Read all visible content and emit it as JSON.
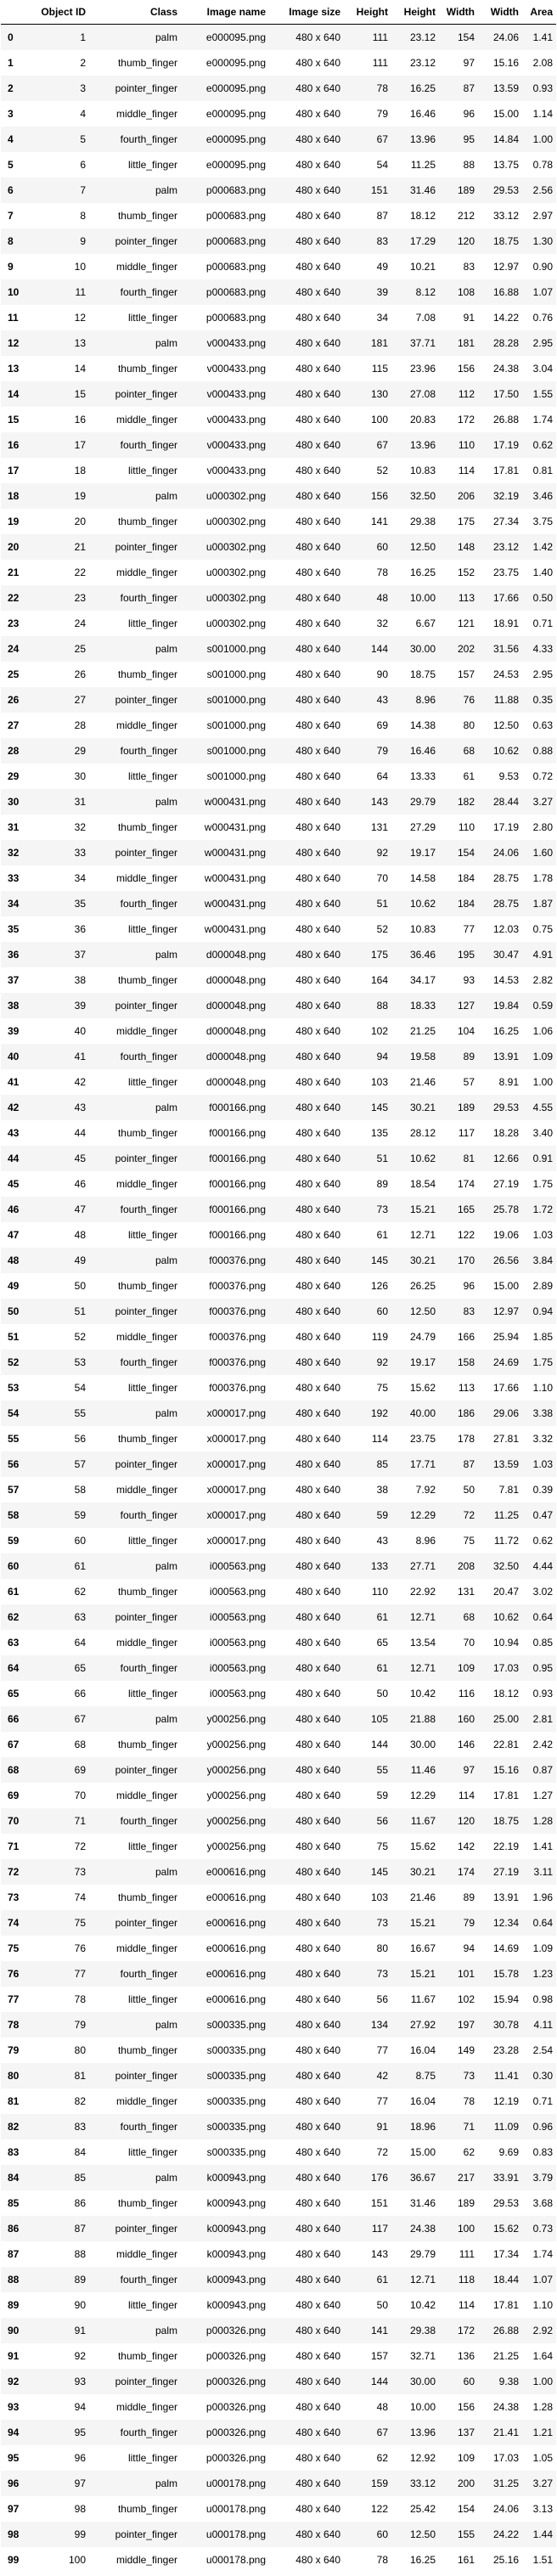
{
  "table": {
    "columns": [
      "",
      "Object ID",
      "Class",
      "Image name",
      "Image size",
      "Height",
      "Height",
      "Width",
      "Width",
      "Area"
    ],
    "rows": [
      [
        "0",
        "1",
        "palm",
        "e000095.png",
        "480 x 640",
        "111",
        "23.12",
        "154",
        "24.06",
        "1.41"
      ],
      [
        "1",
        "2",
        "thumb_finger",
        "e000095.png",
        "480 x 640",
        "111",
        "23.12",
        "97",
        "15.16",
        "2.08"
      ],
      [
        "2",
        "3",
        "pointer_finger",
        "e000095.png",
        "480 x 640",
        "78",
        "16.25",
        "87",
        "13.59",
        "0.93"
      ],
      [
        "3",
        "4",
        "middle_finger",
        "e000095.png",
        "480 x 640",
        "79",
        "16.46",
        "96",
        "15.00",
        "1.14"
      ],
      [
        "4",
        "5",
        "fourth_finger",
        "e000095.png",
        "480 x 640",
        "67",
        "13.96",
        "95",
        "14.84",
        "1.00"
      ],
      [
        "5",
        "6",
        "little_finger",
        "e000095.png",
        "480 x 640",
        "54",
        "11.25",
        "88",
        "13.75",
        "0.78"
      ],
      [
        "6",
        "7",
        "palm",
        "p000683.png",
        "480 x 640",
        "151",
        "31.46",
        "189",
        "29.53",
        "2.56"
      ],
      [
        "7",
        "8",
        "thumb_finger",
        "p000683.png",
        "480 x 640",
        "87",
        "18.12",
        "212",
        "33.12",
        "2.97"
      ],
      [
        "8",
        "9",
        "pointer_finger",
        "p000683.png",
        "480 x 640",
        "83",
        "17.29",
        "120",
        "18.75",
        "1.30"
      ],
      [
        "9",
        "10",
        "middle_finger",
        "p000683.png",
        "480 x 640",
        "49",
        "10.21",
        "83",
        "12.97",
        "0.90"
      ],
      [
        "10",
        "11",
        "fourth_finger",
        "p000683.png",
        "480 x 640",
        "39",
        "8.12",
        "108",
        "16.88",
        "1.07"
      ],
      [
        "11",
        "12",
        "little_finger",
        "p000683.png",
        "480 x 640",
        "34",
        "7.08",
        "91",
        "14.22",
        "0.76"
      ],
      [
        "12",
        "13",
        "palm",
        "v000433.png",
        "480 x 640",
        "181",
        "37.71",
        "181",
        "28.28",
        "2.95"
      ],
      [
        "13",
        "14",
        "thumb_finger",
        "v000433.png",
        "480 x 640",
        "115",
        "23.96",
        "156",
        "24.38",
        "3.04"
      ],
      [
        "14",
        "15",
        "pointer_finger",
        "v000433.png",
        "480 x 640",
        "130",
        "27.08",
        "112",
        "17.50",
        "1.55"
      ],
      [
        "15",
        "16",
        "middle_finger",
        "v000433.png",
        "480 x 640",
        "100",
        "20.83",
        "172",
        "26.88",
        "1.74"
      ],
      [
        "16",
        "17",
        "fourth_finger",
        "v000433.png",
        "480 x 640",
        "67",
        "13.96",
        "110",
        "17.19",
        "0.62"
      ],
      [
        "17",
        "18",
        "little_finger",
        "v000433.png",
        "480 x 640",
        "52",
        "10.83",
        "114",
        "17.81",
        "0.81"
      ],
      [
        "18",
        "19",
        "palm",
        "u000302.png",
        "480 x 640",
        "156",
        "32.50",
        "206",
        "32.19",
        "3.46"
      ],
      [
        "19",
        "20",
        "thumb_finger",
        "u000302.png",
        "480 x 640",
        "141",
        "29.38",
        "175",
        "27.34",
        "3.75"
      ],
      [
        "20",
        "21",
        "pointer_finger",
        "u000302.png",
        "480 x 640",
        "60",
        "12.50",
        "148",
        "23.12",
        "1.42"
      ],
      [
        "21",
        "22",
        "middle_finger",
        "u000302.png",
        "480 x 640",
        "78",
        "16.25",
        "152",
        "23.75",
        "1.40"
      ],
      [
        "22",
        "23",
        "fourth_finger",
        "u000302.png",
        "480 x 640",
        "48",
        "10.00",
        "113",
        "17.66",
        "0.50"
      ],
      [
        "23",
        "24",
        "little_finger",
        "u000302.png",
        "480 x 640",
        "32",
        "6.67",
        "121",
        "18.91",
        "0.71"
      ],
      [
        "24",
        "25",
        "palm",
        "s001000.png",
        "480 x 640",
        "144",
        "30.00",
        "202",
        "31.56",
        "4.33"
      ],
      [
        "25",
        "26",
        "thumb_finger",
        "s001000.png",
        "480 x 640",
        "90",
        "18.75",
        "157",
        "24.53",
        "2.95"
      ],
      [
        "26",
        "27",
        "pointer_finger",
        "s001000.png",
        "480 x 640",
        "43",
        "8.96",
        "76",
        "11.88",
        "0.35"
      ],
      [
        "27",
        "28",
        "middle_finger",
        "s001000.png",
        "480 x 640",
        "69",
        "14.38",
        "80",
        "12.50",
        "0.63"
      ],
      [
        "28",
        "29",
        "fourth_finger",
        "s001000.png",
        "480 x 640",
        "79",
        "16.46",
        "68",
        "10.62",
        "0.88"
      ],
      [
        "29",
        "30",
        "little_finger",
        "s001000.png",
        "480 x 640",
        "64",
        "13.33",
        "61",
        "9.53",
        "0.72"
      ],
      [
        "30",
        "31",
        "palm",
        "w000431.png",
        "480 x 640",
        "143",
        "29.79",
        "182",
        "28.44",
        "3.27"
      ],
      [
        "31",
        "32",
        "thumb_finger",
        "w000431.png",
        "480 x 640",
        "131",
        "27.29",
        "110",
        "17.19",
        "2.80"
      ],
      [
        "32",
        "33",
        "pointer_finger",
        "w000431.png",
        "480 x 640",
        "92",
        "19.17",
        "154",
        "24.06",
        "1.60"
      ],
      [
        "33",
        "34",
        "middle_finger",
        "w000431.png",
        "480 x 640",
        "70",
        "14.58",
        "184",
        "28.75",
        "1.78"
      ],
      [
        "34",
        "35",
        "fourth_finger",
        "w000431.png",
        "480 x 640",
        "51",
        "10.62",
        "184",
        "28.75",
        "1.87"
      ],
      [
        "35",
        "36",
        "little_finger",
        "w000431.png",
        "480 x 640",
        "52",
        "10.83",
        "77",
        "12.03",
        "0.75"
      ],
      [
        "36",
        "37",
        "palm",
        "d000048.png",
        "480 x 640",
        "175",
        "36.46",
        "195",
        "30.47",
        "4.91"
      ],
      [
        "37",
        "38",
        "thumb_finger",
        "d000048.png",
        "480 x 640",
        "164",
        "34.17",
        "93",
        "14.53",
        "2.82"
      ],
      [
        "38",
        "39",
        "pointer_finger",
        "d000048.png",
        "480 x 640",
        "88",
        "18.33",
        "127",
        "19.84",
        "0.59"
      ],
      [
        "39",
        "40",
        "middle_finger",
        "d000048.png",
        "480 x 640",
        "102",
        "21.25",
        "104",
        "16.25",
        "1.06"
      ],
      [
        "40",
        "41",
        "fourth_finger",
        "d000048.png",
        "480 x 640",
        "94",
        "19.58",
        "89",
        "13.91",
        "1.09"
      ],
      [
        "41",
        "42",
        "little_finger",
        "d000048.png",
        "480 x 640",
        "103",
        "21.46",
        "57",
        "8.91",
        "1.00"
      ],
      [
        "42",
        "43",
        "palm",
        "f000166.png",
        "480 x 640",
        "145",
        "30.21",
        "189",
        "29.53",
        "4.55"
      ],
      [
        "43",
        "44",
        "thumb_finger",
        "f000166.png",
        "480 x 640",
        "135",
        "28.12",
        "117",
        "18.28",
        "3.40"
      ],
      [
        "44",
        "45",
        "pointer_finger",
        "f000166.png",
        "480 x 640",
        "51",
        "10.62",
        "81",
        "12.66",
        "0.91"
      ],
      [
        "45",
        "46",
        "middle_finger",
        "f000166.png",
        "480 x 640",
        "89",
        "18.54",
        "174",
        "27.19",
        "1.75"
      ],
      [
        "46",
        "47",
        "fourth_finger",
        "f000166.png",
        "480 x 640",
        "73",
        "15.21",
        "165",
        "25.78",
        "1.72"
      ],
      [
        "47",
        "48",
        "little_finger",
        "f000166.png",
        "480 x 640",
        "61",
        "12.71",
        "122",
        "19.06",
        "1.03"
      ],
      [
        "48",
        "49",
        "palm",
        "f000376.png",
        "480 x 640",
        "145",
        "30.21",
        "170",
        "26.56",
        "3.84"
      ],
      [
        "49",
        "50",
        "thumb_finger",
        "f000376.png",
        "480 x 640",
        "126",
        "26.25",
        "96",
        "15.00",
        "2.89"
      ],
      [
        "50",
        "51",
        "pointer_finger",
        "f000376.png",
        "480 x 640",
        "60",
        "12.50",
        "83",
        "12.97",
        "0.94"
      ],
      [
        "51",
        "52",
        "middle_finger",
        "f000376.png",
        "480 x 640",
        "119",
        "24.79",
        "166",
        "25.94",
        "1.85"
      ],
      [
        "52",
        "53",
        "fourth_finger",
        "f000376.png",
        "480 x 640",
        "92",
        "19.17",
        "158",
        "24.69",
        "1.75"
      ],
      [
        "53",
        "54",
        "little_finger",
        "f000376.png",
        "480 x 640",
        "75",
        "15.62",
        "113",
        "17.66",
        "1.10"
      ],
      [
        "54",
        "55",
        "palm",
        "x000017.png",
        "480 x 640",
        "192",
        "40.00",
        "186",
        "29.06",
        "3.38"
      ],
      [
        "55",
        "56",
        "thumb_finger",
        "x000017.png",
        "480 x 640",
        "114",
        "23.75",
        "178",
        "27.81",
        "3.32"
      ],
      [
        "56",
        "57",
        "pointer_finger",
        "x000017.png",
        "480 x 640",
        "85",
        "17.71",
        "87",
        "13.59",
        "1.03"
      ],
      [
        "57",
        "58",
        "middle_finger",
        "x000017.png",
        "480 x 640",
        "38",
        "7.92",
        "50",
        "7.81",
        "0.39"
      ],
      [
        "58",
        "59",
        "fourth_finger",
        "x000017.png",
        "480 x 640",
        "59",
        "12.29",
        "72",
        "11.25",
        "0.47"
      ],
      [
        "59",
        "60",
        "little_finger",
        "x000017.png",
        "480 x 640",
        "43",
        "8.96",
        "75",
        "11.72",
        "0.62"
      ],
      [
        "60",
        "61",
        "palm",
        "i000563.png",
        "480 x 640",
        "133",
        "27.71",
        "208",
        "32.50",
        "4.44"
      ],
      [
        "61",
        "62",
        "thumb_finger",
        "i000563.png",
        "480 x 640",
        "110",
        "22.92",
        "131",
        "20.47",
        "3.02"
      ],
      [
        "62",
        "63",
        "pointer_finger",
        "i000563.png",
        "480 x 640",
        "61",
        "12.71",
        "68",
        "10.62",
        "0.64"
      ],
      [
        "63",
        "64",
        "middle_finger",
        "i000563.png",
        "480 x 640",
        "65",
        "13.54",
        "70",
        "10.94",
        "0.85"
      ],
      [
        "64",
        "65",
        "fourth_finger",
        "i000563.png",
        "480 x 640",
        "61",
        "12.71",
        "109",
        "17.03",
        "0.95"
      ],
      [
        "65",
        "66",
        "little_finger",
        "i000563.png",
        "480 x 640",
        "50",
        "10.42",
        "116",
        "18.12",
        "0.93"
      ],
      [
        "66",
        "67",
        "palm",
        "y000256.png",
        "480 x 640",
        "105",
        "21.88",
        "160",
        "25.00",
        "2.81"
      ],
      [
        "67",
        "68",
        "thumb_finger",
        "y000256.png",
        "480 x 640",
        "144",
        "30.00",
        "146",
        "22.81",
        "2.42"
      ],
      [
        "68",
        "69",
        "pointer_finger",
        "y000256.png",
        "480 x 640",
        "55",
        "11.46",
        "97",
        "15.16",
        "0.87"
      ],
      [
        "69",
        "70",
        "middle_finger",
        "y000256.png",
        "480 x 640",
        "59",
        "12.29",
        "114",
        "17.81",
        "1.27"
      ],
      [
        "70",
        "71",
        "fourth_finger",
        "y000256.png",
        "480 x 640",
        "56",
        "11.67",
        "120",
        "18.75",
        "1.28"
      ],
      [
        "71",
        "72",
        "little_finger",
        "y000256.png",
        "480 x 640",
        "75",
        "15.62",
        "142",
        "22.19",
        "1.41"
      ],
      [
        "72",
        "73",
        "palm",
        "e000616.png",
        "480 x 640",
        "145",
        "30.21",
        "174",
        "27.19",
        "3.11"
      ],
      [
        "73",
        "74",
        "thumb_finger",
        "e000616.png",
        "480 x 640",
        "103",
        "21.46",
        "89",
        "13.91",
        "1.96"
      ],
      [
        "74",
        "75",
        "pointer_finger",
        "e000616.png",
        "480 x 640",
        "73",
        "15.21",
        "79",
        "12.34",
        "0.64"
      ],
      [
        "75",
        "76",
        "middle_finger",
        "e000616.png",
        "480 x 640",
        "80",
        "16.67",
        "94",
        "14.69",
        "1.09"
      ],
      [
        "76",
        "77",
        "fourth_finger",
        "e000616.png",
        "480 x 640",
        "73",
        "15.21",
        "101",
        "15.78",
        "1.23"
      ],
      [
        "77",
        "78",
        "little_finger",
        "e000616.png",
        "480 x 640",
        "56",
        "11.67",
        "102",
        "15.94",
        "0.98"
      ],
      [
        "78",
        "79",
        "palm",
        "s000335.png",
        "480 x 640",
        "134",
        "27.92",
        "197",
        "30.78",
        "4.11"
      ],
      [
        "79",
        "80",
        "thumb_finger",
        "s000335.png",
        "480 x 640",
        "77",
        "16.04",
        "149",
        "23.28",
        "2.54"
      ],
      [
        "80",
        "81",
        "pointer_finger",
        "s000335.png",
        "480 x 640",
        "42",
        "8.75",
        "73",
        "11.41",
        "0.30"
      ],
      [
        "81",
        "82",
        "middle_finger",
        "s000335.png",
        "480 x 640",
        "77",
        "16.04",
        "78",
        "12.19",
        "0.71"
      ],
      [
        "82",
        "83",
        "fourth_finger",
        "s000335.png",
        "480 x 640",
        "91",
        "18.96",
        "71",
        "11.09",
        "0.96"
      ],
      [
        "83",
        "84",
        "little_finger",
        "s000335.png",
        "480 x 640",
        "72",
        "15.00",
        "62",
        "9.69",
        "0.83"
      ],
      [
        "84",
        "85",
        "palm",
        "k000943.png",
        "480 x 640",
        "176",
        "36.67",
        "217",
        "33.91",
        "3.79"
      ],
      [
        "85",
        "86",
        "thumb_finger",
        "k000943.png",
        "480 x 640",
        "151",
        "31.46",
        "189",
        "29.53",
        "3.68"
      ],
      [
        "86",
        "87",
        "pointer_finger",
        "k000943.png",
        "480 x 640",
        "117",
        "24.38",
        "100",
        "15.62",
        "0.73"
      ],
      [
        "87",
        "88",
        "middle_finger",
        "k000943.png",
        "480 x 640",
        "143",
        "29.79",
        "111",
        "17.34",
        "1.74"
      ],
      [
        "88",
        "89",
        "fourth_finger",
        "k000943.png",
        "480 x 640",
        "61",
        "12.71",
        "118",
        "18.44",
        "1.07"
      ],
      [
        "89",
        "90",
        "little_finger",
        "k000943.png",
        "480 x 640",
        "50",
        "10.42",
        "114",
        "17.81",
        "1.10"
      ],
      [
        "90",
        "91",
        "palm",
        "p000326.png",
        "480 x 640",
        "141",
        "29.38",
        "172",
        "26.88",
        "2.92"
      ],
      [
        "91",
        "92",
        "thumb_finger",
        "p000326.png",
        "480 x 640",
        "157",
        "32.71",
        "136",
        "21.25",
        "1.64"
      ],
      [
        "92",
        "93",
        "pointer_finger",
        "p000326.png",
        "480 x 640",
        "144",
        "30.00",
        "60",
        "9.38",
        "1.00"
      ],
      [
        "93",
        "94",
        "middle_finger",
        "p000326.png",
        "480 x 640",
        "48",
        "10.00",
        "156",
        "24.38",
        "1.28"
      ],
      [
        "94",
        "95",
        "fourth_finger",
        "p000326.png",
        "480 x 640",
        "67",
        "13.96",
        "137",
        "21.41",
        "1.21"
      ],
      [
        "95",
        "96",
        "little_finger",
        "p000326.png",
        "480 x 640",
        "62",
        "12.92",
        "109",
        "17.03",
        "1.05"
      ],
      [
        "96",
        "97",
        "palm",
        "u000178.png",
        "480 x 640",
        "159",
        "33.12",
        "200",
        "31.25",
        "3.27"
      ],
      [
        "97",
        "98",
        "thumb_finger",
        "u000178.png",
        "480 x 640",
        "122",
        "25.42",
        "154",
        "24.06",
        "3.13"
      ],
      [
        "98",
        "99",
        "pointer_finger",
        "u000178.png",
        "480 x 640",
        "60",
        "12.50",
        "155",
        "24.22",
        "1.44"
      ],
      [
        "99",
        "100",
        "middle_finger",
        "u000178.png",
        "480 x 640",
        "78",
        "16.25",
        "161",
        "25.16",
        "1.51"
      ]
    ]
  }
}
